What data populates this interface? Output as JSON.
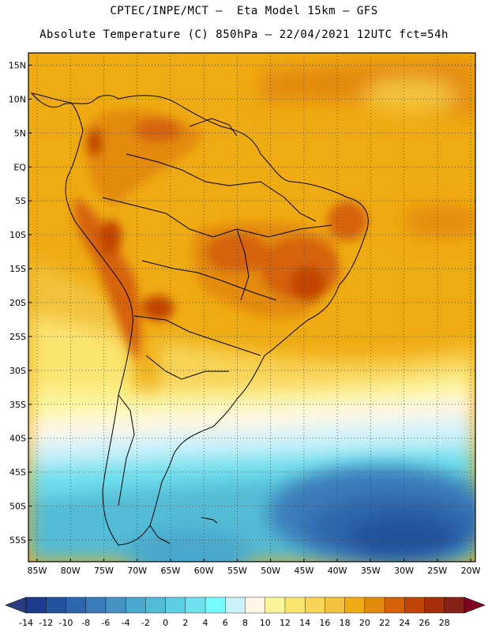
{
  "title_line1": "CPTEC/INPE/MCT –  Eta Model 15km – GFS",
  "title_line2": "Absolute Temperature (C) 850hPa – 22/04/2021 12UTC fct=54h",
  "map": {
    "lat_labels": [
      "15N",
      "10N",
      "5N",
      "EQ",
      "5S",
      "10S",
      "15S",
      "20S",
      "25S",
      "30S",
      "35S",
      "40S",
      "45S",
      "50S",
      "55S"
    ],
    "lon_labels": [
      "85W",
      "80W",
      "75W",
      "70W",
      "65W",
      "60W",
      "55W",
      "50W",
      "45W",
      "40W",
      "35W",
      "30W",
      "25W",
      "20W"
    ],
    "lat_values": [
      15,
      10,
      5,
      0,
      -5,
      -10,
      -15,
      -20,
      -25,
      -30,
      -35,
      -40,
      -45,
      -50,
      -55
    ],
    "lon_values": [
      -85,
      -80,
      -75,
      -70,
      -65,
      -60,
      -55,
      -50,
      -45,
      -40,
      -35,
      -30,
      -25,
      -20
    ],
    "domain": {
      "lon_min": -86.3,
      "lon_max": -19.3,
      "lat_min": -58.2,
      "lat_max": 16.8
    }
  },
  "colorbar": {
    "labels": [
      "-14",
      "-12",
      "-10",
      "-8",
      "-6",
      "-4",
      "-2",
      "0",
      "2",
      "4",
      "6",
      "8",
      "10",
      "12",
      "14",
      "16",
      "18",
      "20",
      "22",
      "24",
      "26",
      "28"
    ],
    "colors": [
      "#1c3c8c",
      "#24519c",
      "#2d66ac",
      "#3a7cb9",
      "#4592c3",
      "#4aa7cd",
      "#52bcd6",
      "#5ccfe3",
      "#6fe0ee",
      "#78fbfc",
      "#ccf2fb",
      "#fff7e6",
      "#fdf59a",
      "#fbe56f",
      "#f8d457",
      "#f3c23e",
      "#efab13",
      "#e48a0c",
      "#d56208",
      "#c14506",
      "#a42e08",
      "#872017"
    ],
    "under_color": "#2a3d80",
    "over_color": "#800023"
  }
}
